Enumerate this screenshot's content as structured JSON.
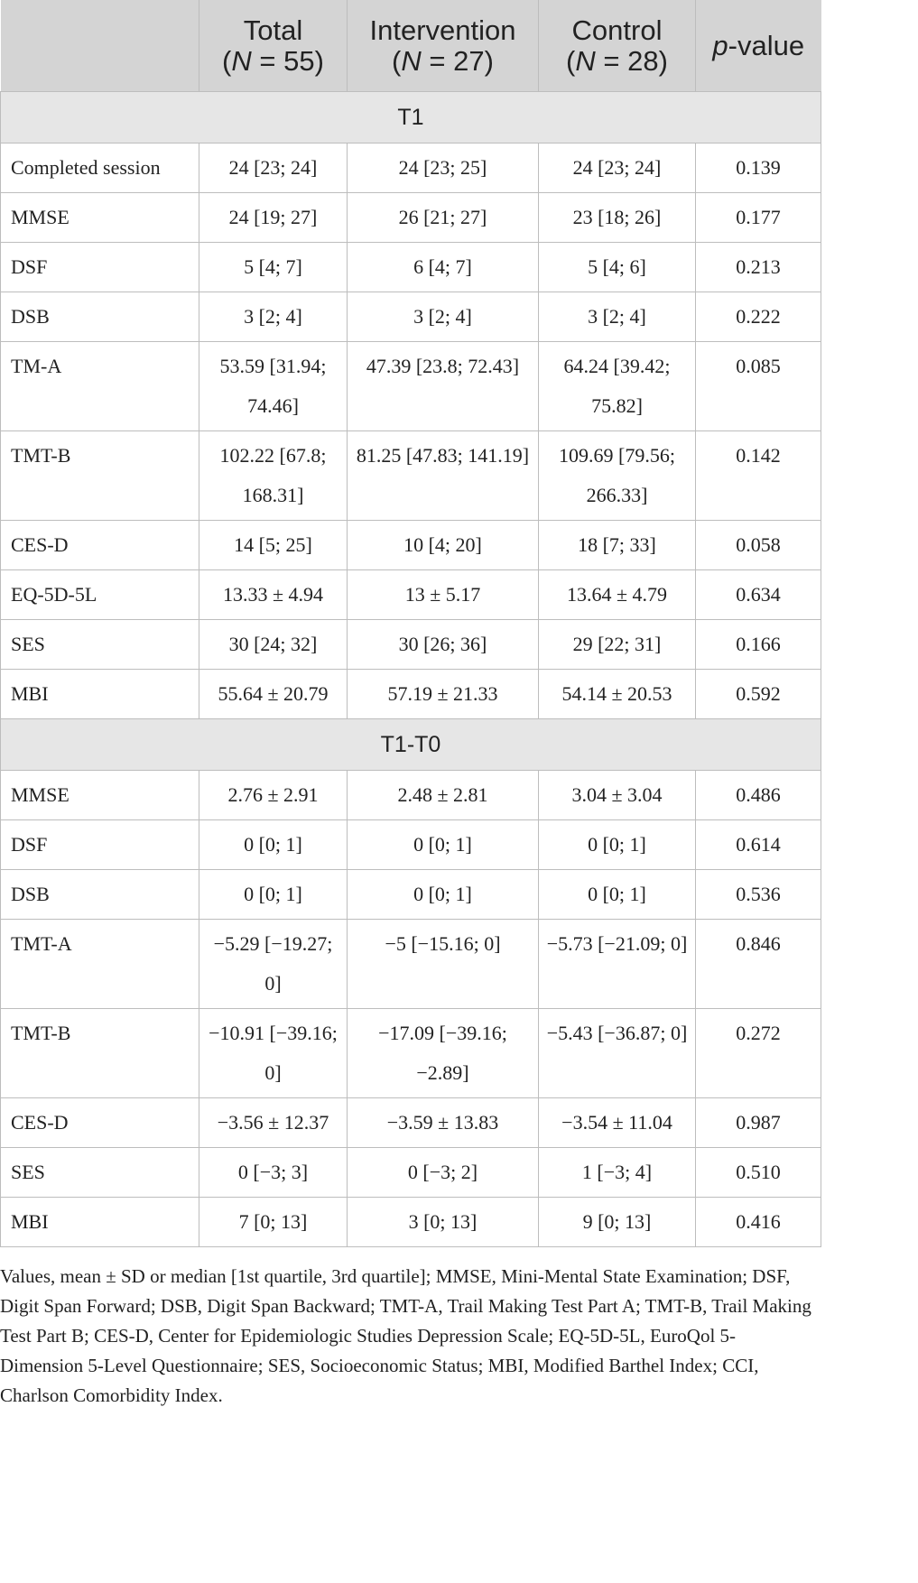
{
  "columns": [
    {
      "name": "",
      "n_label": ""
    },
    {
      "name": "Total",
      "n_label": "(N = 55)"
    },
    {
      "name": "Intervention",
      "n_label": "(N = 27)"
    },
    {
      "name": "Control",
      "n_label": "(N = 28)"
    },
    {
      "name": "p-value",
      "n_label": ""
    }
  ],
  "sections": [
    {
      "title": "T1",
      "rows": [
        [
          "Completed session",
          "24 [23; 24]",
          "24 [23; 25]",
          "24 [23; 24]",
          "0.139"
        ],
        [
          "MMSE",
          "24 [19; 27]",
          "26 [21; 27]",
          "23 [18; 26]",
          "0.177"
        ],
        [
          "DSF",
          "5 [4; 7]",
          "6 [4; 7]",
          "5 [4; 6]",
          "0.213"
        ],
        [
          "DSB",
          "3 [2; 4]",
          "3 [2; 4]",
          "3 [2; 4]",
          "0.222"
        ],
        [
          "TM-A",
          "53.59 [31.94; 74.46]",
          "47.39 [23.8; 72.43]",
          "64.24 [39.42; 75.82]",
          "0.085"
        ],
        [
          "TMT-B",
          "102.22 [67.8; 168.31]",
          "81.25 [47.83; 141.19]",
          "109.69 [79.56; 266.33]",
          "0.142"
        ],
        [
          "CES-D",
          "14 [5; 25]",
          "10 [4; 20]",
          "18 [7; 33]",
          "0.058"
        ],
        [
          "EQ-5D-5L",
          "13.33 ± 4.94",
          "13 ± 5.17",
          "13.64 ± 4.79",
          "0.634"
        ],
        [
          "SES",
          "30 [24; 32]",
          "30 [26; 36]",
          "29 [22; 31]",
          "0.166"
        ],
        [
          "MBI",
          "55.64 ± 20.79",
          "57.19 ± 21.33",
          "54.14 ± 20.53",
          "0.592"
        ]
      ]
    },
    {
      "title": "T1-T0",
      "rows": [
        [
          "MMSE",
          "2.76 ± 2.91",
          "2.48 ± 2.81",
          "3.04 ± 3.04",
          "0.486"
        ],
        [
          "DSF",
          "0 [0; 1]",
          "0 [0; 1]",
          "0 [0; 1]",
          "0.614"
        ],
        [
          "DSB",
          "0 [0; 1]",
          "0 [0; 1]",
          "0 [0; 1]",
          "0.536"
        ],
        [
          "TMT-A",
          "−5.29 [−19.27; 0]",
          "−5 [−15.16; 0]",
          "−5.73 [−21.09; 0]",
          "0.846"
        ],
        [
          "TMT-B",
          "−10.91 [−39.16; 0]",
          "−17.09 [−39.16; −2.89]",
          "−5.43 [−36.87; 0]",
          "0.272"
        ],
        [
          "CES-D",
          "−3.56 ± 12.37",
          "−3.59 ± 13.83",
          "−3.54 ± 11.04",
          "0.987"
        ],
        [
          "SES",
          "0 [−3; 3]",
          "0 [−3; 2]",
          "1 [−3; 4]",
          "0.510"
        ],
        [
          "MBI",
          "7 [0; 13]",
          "3 [0; 13]",
          "9 [0; 13]",
          "0.416"
        ]
      ]
    }
  ],
  "footnote": "Values, mean ± SD or median [1st quartile, 3rd quartile]; MMSE, Mini-Mental State Examination; DSF, Digit Span Forward; DSB, Digit Span Backward; TMT-A, Trail Making Test Part A; TMT-B, Trail Making Test Part B; CES-D, Center for Epidemiologic Studies Depression Scale; EQ-5D-5L, EuroQol 5-Dimension 5-Level Questionnaire; SES, Socioeconomic Status; MBI, Modified Barthel Index; CCI, Charlson Comorbidity Index."
}
